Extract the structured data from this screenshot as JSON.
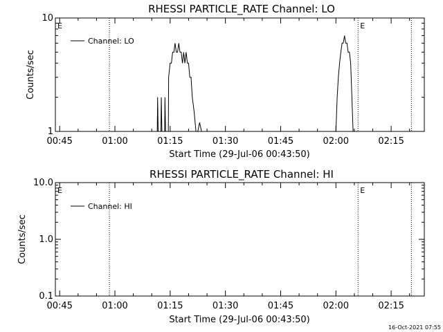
{
  "timestamp": "16-Oct-2021 07:55",
  "chart_data": [
    {
      "type": "line",
      "title": "RHESSI PARTICLE_RATE Channel: LO",
      "xlabel": "Start Time (29-Jul-06 00:43:50)",
      "ylabel": "Counts/sec",
      "y_scale": "log",
      "ylim": [
        1,
        10
      ],
      "yticks": [
        {
          "v": 1,
          "label": "1"
        },
        {
          "v": 10,
          "label": "10"
        }
      ],
      "xlim": [
        "00:43:50",
        "02:24:00"
      ],
      "xticks": [
        "00:45",
        "01:00",
        "01:15",
        "01:30",
        "01:45",
        "02:00",
        "02:15"
      ],
      "markers": [
        {
          "time": "00:43:50",
          "label": "E",
          "dotted": false
        },
        {
          "time": "00:58:30",
          "label": "",
          "dotted": true
        },
        {
          "time": "02:06:00",
          "label": "E",
          "dotted": true
        },
        {
          "time": "02:20:30",
          "label": "",
          "dotted": true
        }
      ],
      "legend": {
        "position": "top-left",
        "label": "Channel: LO"
      },
      "series": [
        {
          "name": "Channel: LO",
          "segments": [
            [
              [
                "01:11:30",
                1
              ],
              [
                "01:11:35",
                2
              ],
              [
                "01:11:45",
                1
              ]
            ],
            [
              [
                "01:12:30",
                1
              ],
              [
                "01:12:35",
                2
              ],
              [
                "01:12:45",
                1
              ]
            ],
            [
              [
                "01:13:30",
                1
              ],
              [
                "01:13:35",
                2
              ],
              [
                "01:13:45",
                1
              ]
            ],
            [
              [
                "01:14:30",
                1
              ],
              [
                "01:14:35",
                3
              ],
              [
                "01:15:00",
                4
              ],
              [
                "01:15:20",
                4
              ],
              [
                "01:15:40",
                5
              ],
              [
                "01:16:00",
                5
              ],
              [
                "01:16:20",
                6
              ],
              [
                "01:16:40",
                5
              ],
              [
                "01:17:00",
                5
              ],
              [
                "01:17:20",
                6
              ],
              [
                "01:17:40",
                5
              ],
              [
                "01:18:00",
                5
              ],
              [
                "01:18:20",
                4
              ],
              [
                "01:18:40",
                5
              ],
              [
                "01:19:00",
                4
              ],
              [
                "01:19:20",
                5
              ],
              [
                "01:19:40",
                4
              ],
              [
                "01:20:00",
                4
              ],
              [
                "01:20:20",
                3
              ],
              [
                "01:20:40",
                3
              ],
              [
                "01:21:00",
                2
              ],
              [
                "01:21:30",
                1.5
              ],
              [
                "01:22:00",
                1
              ],
              [
                "01:22:30",
                1
              ],
              [
                "01:23:00",
                1.2
              ],
              [
                "01:23:30",
                1
              ],
              [
                "01:24:00",
                1
              ]
            ],
            [
              [
                "02:00:00",
                1
              ],
              [
                "02:00:20",
                2
              ],
              [
                "02:00:40",
                3
              ],
              [
                "02:01:00",
                4
              ],
              [
                "02:01:20",
                5
              ],
              [
                "02:01:40",
                6
              ],
              [
                "02:02:00",
                6
              ],
              [
                "02:02:20",
                7
              ],
              [
                "02:02:40",
                6
              ],
              [
                "02:03:00",
                6
              ],
              [
                "02:03:20",
                5
              ],
              [
                "02:03:40",
                5
              ],
              [
                "02:04:00",
                4
              ],
              [
                "02:04:20",
                2
              ],
              [
                "02:04:40",
                1
              ]
            ]
          ]
        }
      ]
    },
    {
      "type": "line",
      "title": "RHESSI PARTICLE_RATE Channel: HI",
      "xlabel": "Start Time (29-Jul-06 00:43:50)",
      "ylabel": "Counts/sec",
      "y_scale": "log",
      "ylim": [
        0.1,
        10
      ],
      "yticks": [
        {
          "v": 0.1,
          "label": "0.1"
        },
        {
          "v": 1,
          "label": "1.0"
        },
        {
          "v": 10,
          "label": "10.0"
        }
      ],
      "xlim": [
        "00:43:50",
        "02:24:00"
      ],
      "xticks": [
        "00:45",
        "01:00",
        "01:15",
        "01:30",
        "01:45",
        "02:00",
        "02:15"
      ],
      "markers": [
        {
          "time": "00:43:50",
          "label": "E",
          "dotted": false
        },
        {
          "time": "00:58:30",
          "label": "",
          "dotted": true
        },
        {
          "time": "02:06:00",
          "label": "E",
          "dotted": true
        },
        {
          "time": "02:20:30",
          "label": "",
          "dotted": true
        }
      ],
      "legend": {
        "position": "top-left",
        "label": "Channel: HI"
      },
      "series": [
        {
          "name": "Channel: HI",
          "segments": []
        }
      ]
    }
  ]
}
